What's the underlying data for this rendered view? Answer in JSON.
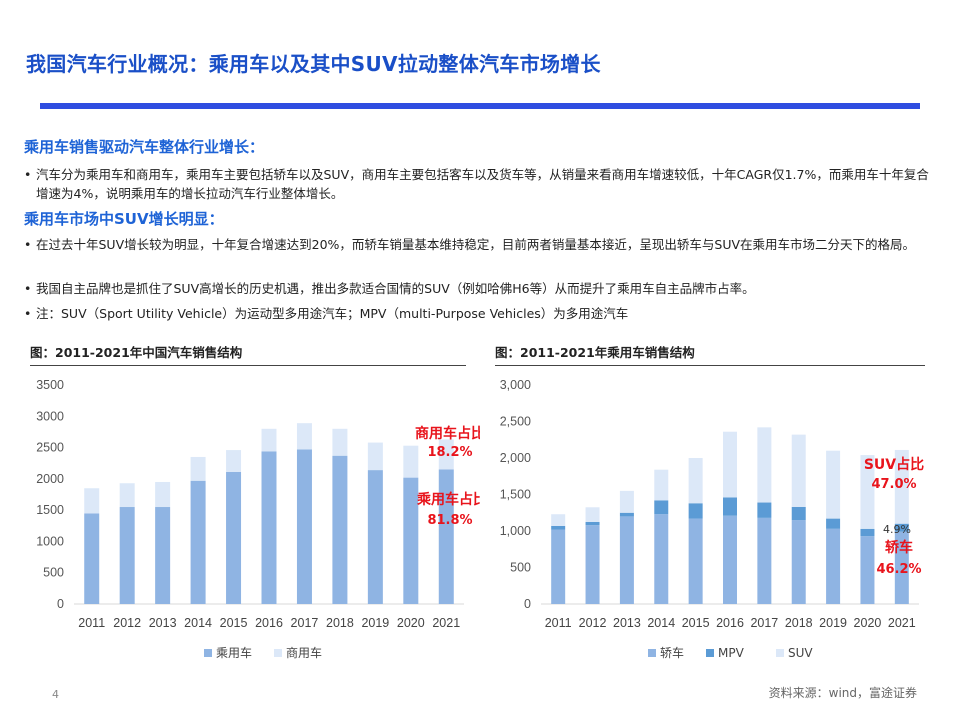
{
  "title": "我国汽车行业概况：乘用车以及其中SUV拉动整体汽车市场增长",
  "section1": {
    "heading": "乘用车销售驱动汽车整体行业增长：",
    "bullets": [
      "汽车分为乘用车和商用车，乘用车主要包括轿车以及SUV，商用车主要包括客车以及货车等，从销量来看商用车增速较低，十年CAGR仅1.7%，而乘用车十年复合增速为4%，说明乘用车的增长拉动汽车行业整体增长。"
    ]
  },
  "section2": {
    "heading": "乘用车市场中SUV增长明显：",
    "bullets": [
      "在过去十年SUV增长较为明显，十年复合增速达到20%，而轿车销量基本维持稳定，目前两者销量基本接近，呈现出轿车与SUV在乘用车市场二分天下的格局。",
      "我国自主品牌也是抓住了SUV高增长的历史机遇，推出多款适合国情的SUV（例如哈佛H6等）从而提升了乘用车自主品牌市占率。",
      "注：SUV（Sport Utility Vehicle）为运动型多用途汽车；MPV（multi-Purpose Vehicles）为多用途汽车"
    ]
  },
  "bullet_marker": "•",
  "chart_data": [
    {
      "type": "bar",
      "stacked": true,
      "title": "图：2011-2021年中国汽车销售结构",
      "categories": [
        "2011",
        "2012",
        "2013",
        "2014",
        "2015",
        "2016",
        "2017",
        "2018",
        "2019",
        "2020",
        "2021"
      ],
      "ylim": [
        0,
        3500
      ],
      "yticks": [
        "0",
        "500",
        "1000",
        "1500",
        "2000",
        "2500",
        "3000",
        "3500"
      ],
      "series": [
        {
          "name": "乘用车",
          "color": "#8fb4e3",
          "values": [
            1447,
            1550,
            1550,
            1970,
            2110,
            2440,
            2470,
            2370,
            2140,
            2020,
            2150
          ]
        },
        {
          "name": "商用车",
          "color": "#dce8f8",
          "values": [
            403,
            380,
            400,
            380,
            350,
            360,
            420,
            430,
            440,
            510,
            480
          ]
        }
      ],
      "annotations": [
        {
          "text": "商用车占比",
          "color": "#e8141c"
        },
        {
          "text": "18.2%",
          "color": "#e8141c"
        },
        {
          "text": "乘用车占比",
          "color": "#e8141c"
        },
        {
          "text": "81.8%",
          "color": "#e8141c"
        }
      ],
      "legend": "bottom"
    },
    {
      "type": "bar",
      "stacked": true,
      "title": "图：2011-2021年乘用车销售结构",
      "categories": [
        "2011",
        "2012",
        "2013",
        "2014",
        "2015",
        "2016",
        "2017",
        "2018",
        "2019",
        "2020",
        "2021"
      ],
      "ylim": [
        0,
        3000
      ],
      "yticks": [
        "0",
        "500",
        "1,000",
        "1,500",
        "2,000",
        "2,500",
        "3,000"
      ],
      "series": [
        {
          "name": "轿车",
          "color": "#8fb4e3",
          "values": [
            1020,
            1080,
            1200,
            1230,
            1170,
            1210,
            1180,
            1150,
            1030,
            930,
            990
          ]
        },
        {
          "name": "MPV",
          "color": "#5b9bd5",
          "values": [
            50,
            45,
            50,
            190,
            210,
            250,
            210,
            180,
            140,
            100,
            110
          ]
        },
        {
          "name": "SUV",
          "color": "#dce8f8",
          "values": [
            160,
            200,
            300,
            420,
            620,
            900,
            1030,
            990,
            930,
            1010,
            1010
          ]
        }
      ],
      "annotations": [
        {
          "text": "SUV占比",
          "color": "#e8141c"
        },
        {
          "text": "47.0%",
          "color": "#e8141c"
        },
        {
          "text": "4.9%",
          "color": "#333333"
        },
        {
          "text": "轿车",
          "color": "#e8141c"
        },
        {
          "text": "46.2%",
          "color": "#e8141c"
        }
      ],
      "legend": "bottom"
    }
  ],
  "footer": {
    "page": "4",
    "source": "资料来源：wind，富途证券"
  }
}
